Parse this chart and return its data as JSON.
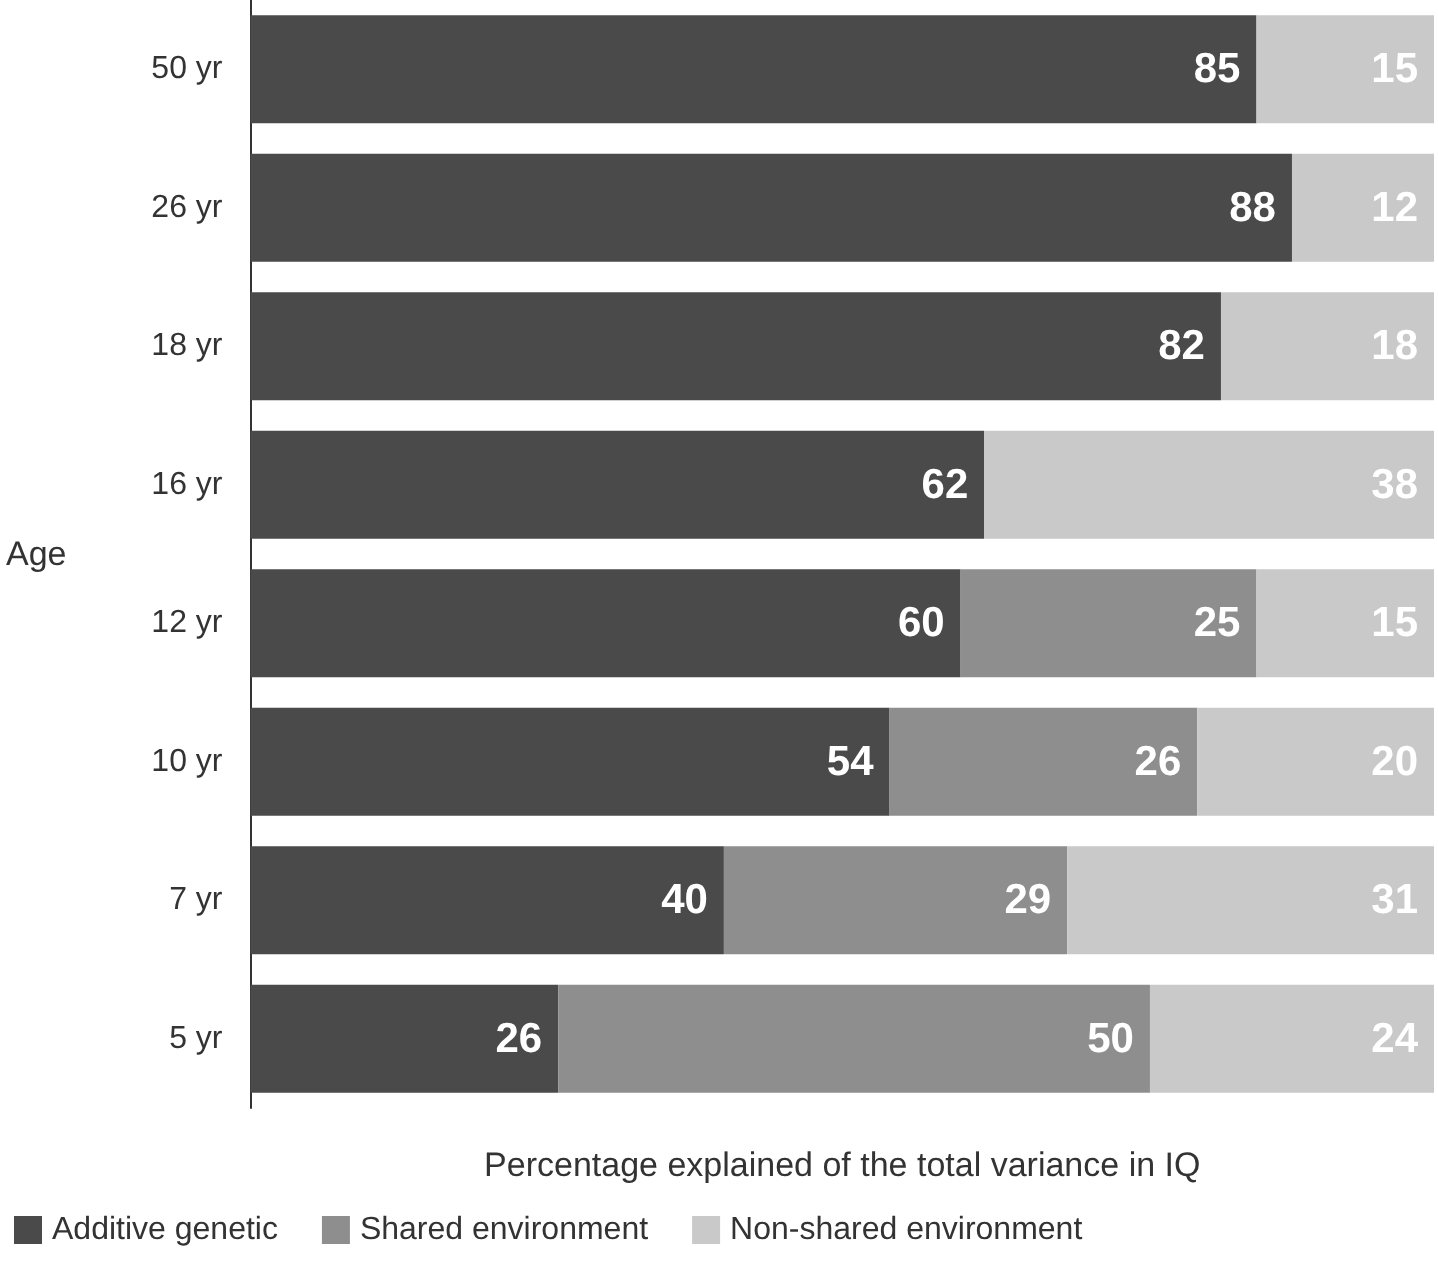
{
  "chart_data": {
    "type": "bar",
    "orientation": "horizontal",
    "stacked": true,
    "categories": [
      "50 yr",
      "26 yr",
      "18 yr",
      "16 yr",
      "12 yr",
      "10 yr",
      "7 yr",
      "5 yr"
    ],
    "series": [
      {
        "name": "Additive genetic",
        "color": "#4a4a4a",
        "values": [
          85,
          88,
          82,
          62,
          60,
          54,
          40,
          26
        ]
      },
      {
        "name": "Shared environment",
        "color": "#8e8e8e",
        "values": [
          null,
          null,
          null,
          null,
          25,
          26,
          29,
          50
        ]
      },
      {
        "name": "Non-shared environment",
        "color": "#c9c9c9",
        "values": [
          15,
          12,
          18,
          38,
          15,
          20,
          31,
          24
        ]
      }
    ],
    "xlim": [
      0,
      100
    ],
    "xlabel": "Percentage explained of the total variance in IQ",
    "ylabel": "Age",
    "data_labels": true,
    "legend": "bottom left",
    "tick_labels": "y"
  }
}
